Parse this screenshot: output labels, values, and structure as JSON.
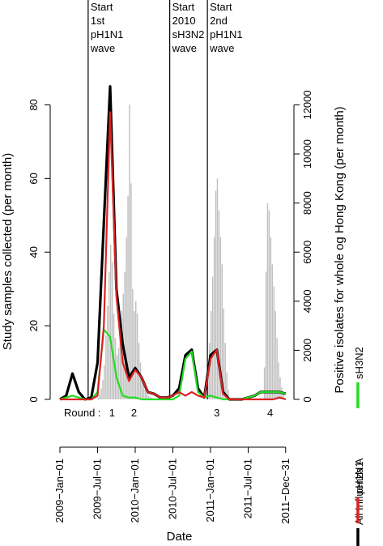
{
  "chart_data": {
    "type": "line",
    "xlabel": "Date",
    "ylabel_left": "Study samples collected (per month)",
    "ylabel_right": "Positive isolates for whole og Hong Kong (per month)",
    "x_ticks": [
      "2009−Jan−01",
      "2009−Jul−01",
      "2010−Jan−01",
      "2010−Jul−01",
      "2011−Jan−01",
      "2011−Jul−01",
      "2011−Dec−31"
    ],
    "x_tick_months": [
      0,
      6,
      12,
      18,
      24,
      30,
      35.97
    ],
    "xlim": [
      0,
      36
    ],
    "ylim_left": [
      0,
      90
    ],
    "yticks_left": [
      0,
      20,
      40,
      60,
      80
    ],
    "ylim_right": [
      0,
      13500
    ],
    "yticks_right": [
      0,
      2000,
      4000,
      6000,
      8000,
      10000,
      12000
    ],
    "grid": false,
    "legend_position": "right (rotated)",
    "legend": [
      {
        "label": "All Influenza A",
        "color": "#000000"
      },
      {
        "label": "pH1N1",
        "color": "#dd2222"
      },
      {
        "label": "sH3N2",
        "color": "#22dd22"
      }
    ],
    "rounds_label": "Round :",
    "rounds": [
      {
        "label": "1",
        "month": 8.3
      },
      {
        "label": "2",
        "month": 11.8
      },
      {
        "label": "3",
        "month": 25.0
      },
      {
        "label": "4",
        "month": 33.5
      }
    ],
    "events": [
      {
        "lines": [
          "Start",
          "1st",
          "pH1N1",
          "wave"
        ],
        "month": 4.5
      },
      {
        "lines": [
          "Start",
          "2010",
          "sH3N2",
          "wave"
        ],
        "month": 17.5
      },
      {
        "lines": [
          "Start",
          "2nd",
          "pH1N1",
          "wave"
        ],
        "month": 23.5
      }
    ],
    "series": [
      {
        "name": "All Influenza A",
        "color": "#000000",
        "x": [
          0,
          1,
          2,
          3,
          4,
          5,
          6,
          7,
          8,
          9,
          10,
          11,
          12,
          13,
          14,
          15,
          16,
          17,
          18,
          19,
          20,
          21,
          22,
          23,
          24,
          25,
          26,
          27,
          28,
          29,
          30,
          31,
          32,
          33,
          34,
          35,
          36
        ],
        "values": [
          0,
          1,
          7,
          2,
          0,
          0.5,
          10,
          48,
          85,
          30,
          15,
          6,
          8.5,
          6,
          2,
          1.5,
          0.5,
          0.5,
          1,
          3,
          12,
          13.5,
          3,
          0.5,
          12,
          13.5,
          2,
          0,
          0,
          0,
          0.5,
          1,
          2,
          2,
          2,
          2,
          1.5
        ]
      },
      {
        "name": "pH1N1",
        "color": "#dd2222",
        "x": [
          0,
          1,
          2,
          3,
          4,
          5,
          6,
          7,
          8,
          9,
          10,
          11,
          12,
          13,
          14,
          15,
          16,
          17,
          18,
          19,
          20,
          21,
          22,
          23,
          24,
          25,
          26,
          27,
          28,
          29,
          30,
          31,
          32,
          33,
          34,
          35,
          36
        ],
        "values": [
          0,
          0,
          0,
          0,
          0,
          0,
          1,
          20,
          78,
          28,
          10,
          5,
          8,
          6,
          2,
          1.5,
          0.5,
          0.5,
          1,
          2,
          1,
          2,
          1,
          0.5,
          11,
          13.5,
          1.5,
          0,
          0,
          0,
          0,
          0,
          0,
          0,
          0,
          0.5,
          0
        ]
      },
      {
        "name": "sH3N2",
        "color": "#22dd22",
        "x": [
          0,
          1,
          2,
          3,
          4,
          5,
          6,
          7,
          8,
          9,
          10,
          11,
          12,
          13,
          14,
          15,
          16,
          17,
          18,
          19,
          20,
          21,
          22,
          23,
          24,
          25,
          26,
          27,
          28,
          29,
          30,
          31,
          32,
          33,
          34,
          35,
          36
        ],
        "values": [
          0,
          0.5,
          1,
          0.5,
          0,
          0,
          2,
          19,
          17,
          6,
          1,
          0.5,
          0.5,
          0,
          0,
          0,
          0,
          0,
          0,
          1,
          11,
          13,
          2,
          0.5,
          1,
          0.5,
          0,
          0,
          0,
          0,
          0.5,
          1,
          2,
          2,
          2,
          2,
          1.5
        ]
      }
    ],
    "isolates_bars": {
      "name": "Positive isolates",
      "color": "#c0c0c0",
      "axis": "right",
      "bin_width_months": 0.25,
      "x": [
        6.0,
        6.25,
        6.5,
        6.75,
        7.0,
        7.25,
        7.5,
        7.75,
        8.0,
        8.25,
        8.5,
        8.75,
        9.0,
        9.25,
        9.5,
        9.75,
        10.0,
        10.25,
        10.5,
        10.75,
        11.0,
        11.25,
        11.5,
        11.75,
        12.0,
        12.25,
        12.5,
        12.75,
        13.0,
        13.25,
        13.5,
        13.75,
        14.0,
        14.25,
        14.5,
        14.75,
        23.5,
        23.75,
        24.0,
        24.25,
        24.5,
        24.75,
        25.0,
        25.25,
        25.5,
        25.75,
        26.0,
        26.25,
        26.5,
        26.75,
        32.5,
        32.75,
        33.0,
        33.25,
        33.5,
        33.75,
        34.0,
        34.25,
        34.5,
        34.75,
        35.0,
        35.25,
        35.5
      ],
      "values": [
        80,
        200,
        450,
        800,
        1400,
        2600,
        3800,
        5200,
        6300,
        5600,
        3500,
        2500,
        1800,
        2100,
        2900,
        3600,
        4300,
        5200,
        6600,
        8300,
        12000,
        8800,
        4500,
        3600,
        4000,
        3500,
        2300,
        1500,
        900,
        600,
        400,
        250,
        150,
        100,
        70,
        40,
        1200,
        2300,
        3600,
        5000,
        6600,
        8500,
        9000,
        7700,
        6600,
        5500,
        3700,
        2300,
        1100,
        400,
        1300,
        5200,
        8000,
        7700,
        6600,
        5500,
        4600,
        3600,
        2500,
        1500,
        900,
        500,
        250
      ]
    }
  }
}
